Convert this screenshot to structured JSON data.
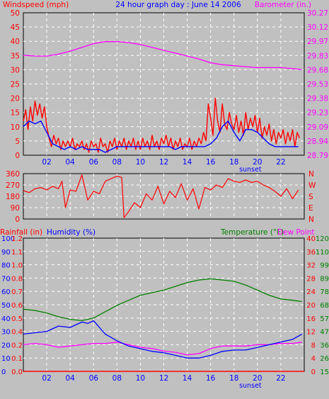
{
  "colors": {
    "background": "#c0c0c0",
    "plot_area": "#c0c0c0",
    "grid": "#ffffff",
    "wind": "#ff0000",
    "wind_avg": "#0000ff",
    "barometer": "#ff00ff",
    "direction": "#ff0000",
    "rain": "#ff0000",
    "humidity": "#0000ff",
    "temperature": "#008000",
    "dewpoint": "#ff00ff",
    "title": "#0000ff",
    "sunset": "#0000ff"
  },
  "header": {
    "left_label": "Windspeed (mph)",
    "title": "24 hour graph day : June 14 2006",
    "right_label": "Barometer (in.)"
  },
  "bottom_header": {
    "rain_label": "Rainfall (in)",
    "humidity_label": "Humidity (%)",
    "temp_label": "Temperature (°F)",
    "dew_label": "Dew Point"
  },
  "x_axis": {
    "ticks": [
      "02",
      "04",
      "06",
      "08",
      "10",
      "12",
      "14",
      "16",
      "18",
      "20",
      "22"
    ],
    "sunset_label": "sunset",
    "sunset_hour": 20
  },
  "chart_data": [
    {
      "type": "line",
      "name": "wind",
      "y_ticks_left": [
        "0",
        "5",
        "10",
        "15",
        "20",
        "25",
        "30",
        "35",
        "40",
        "45",
        "50"
      ],
      "y_ticks_right": [
        "28.79",
        "28.94",
        "29.09",
        "29.23",
        "29.38",
        "29.53",
        "29.68",
        "29.83",
        "29.97",
        "30.12",
        "30.27"
      ],
      "ylim_left": [
        0,
        50
      ],
      "ylim_right": [
        28.79,
        30.27
      ],
      "xlim_hours": [
        0,
        24
      ],
      "series": [
        {
          "name": "Windspeed (mph)",
          "x": [
            0,
            0.2,
            0.4,
            0.6,
            0.8,
            1.0,
            1.2,
            1.4,
            1.6,
            1.8,
            2.0,
            2.2,
            2.4,
            2.6,
            2.8,
            3.0,
            3.2,
            3.4,
            3.6,
            3.8,
            4.0,
            4.2,
            4.4,
            4.6,
            4.8,
            5.0,
            5.2,
            5.4,
            5.6,
            5.8,
            6.0,
            6.2,
            6.4,
            6.6,
            6.8,
            7.0,
            7.2,
            7.4,
            7.6,
            7.8,
            8.0,
            8.2,
            8.4,
            8.6,
            8.8,
            9.0,
            9.2,
            9.4,
            9.6,
            9.8,
            10.0,
            10.2,
            10.4,
            10.6,
            10.8,
            11.0,
            11.2,
            11.4,
            11.6,
            11.8,
            12.0,
            12.2,
            12.4,
            12.6,
            12.8,
            13.0,
            13.2,
            13.4,
            13.6,
            13.8,
            14.0,
            14.2,
            14.4,
            14.6,
            14.8,
            15.0,
            15.2,
            15.4,
            15.6,
            15.8,
            16.0,
            16.2,
            16.4,
            16.6,
            16.8,
            17.0,
            17.2,
            17.4,
            17.6,
            17.8,
            18.0,
            18.2,
            18.4,
            18.6,
            18.8,
            19.0,
            19.2,
            19.4,
            19.6,
            19.8,
            20.0,
            20.2,
            20.4,
            20.6,
            20.8,
            21.0,
            21.2,
            21.4,
            21.6,
            21.8,
            22.0,
            22.2,
            22.4,
            22.6,
            22.8,
            23.0,
            23.2,
            23.4,
            23.6
          ],
          "values": [
            12,
            16,
            9,
            17,
            12,
            19,
            14,
            18,
            13,
            17,
            10,
            6,
            3,
            7,
            4,
            6,
            2,
            5,
            3,
            5,
            3,
            6,
            2,
            4,
            3,
            5,
            2,
            4,
            1,
            5,
            3,
            4,
            1,
            6,
            3,
            4,
            1,
            5,
            3,
            6,
            2,
            5,
            3,
            6,
            2,
            5,
            3,
            6,
            2,
            5,
            2,
            6,
            3,
            5,
            2,
            7,
            3,
            5,
            2,
            6,
            4,
            7,
            3,
            6,
            2,
            5,
            3,
            6,
            2,
            4,
            3,
            6,
            2,
            5,
            3,
            6,
            4,
            8,
            5,
            18,
            13,
            7,
            20,
            12,
            8,
            18,
            11,
            9,
            15,
            11,
            9,
            14,
            8,
            12,
            7,
            15,
            9,
            13,
            10,
            14,
            8,
            13,
            6,
            10,
            7,
            11,
            5,
            9,
            4,
            8,
            6,
            9,
            4,
            8,
            5,
            9,
            3,
            8,
            6
          ]
        },
        {
          "name": "Wind average",
          "x": [
            0,
            0.5,
            1.0,
            1.5,
            2.0,
            2.5,
            3.0,
            3.5,
            4.0,
            4.5,
            5.0,
            5.5,
            6.0,
            6.5,
            7.0,
            7.5,
            8.0,
            8.5,
            9.0,
            9.5,
            10.0,
            10.5,
            11.0,
            11.5,
            12.0,
            12.5,
            13.0,
            13.5,
            14.0,
            14.5,
            15.0,
            15.5,
            16.0,
            16.5,
            17.0,
            17.5,
            18.0,
            18.5,
            19.0,
            19.5,
            20.0,
            20.5,
            21.0,
            21.5,
            22.0,
            22.5,
            23.0,
            23.5
          ],
          "values": [
            10,
            12,
            11,
            12,
            8,
            4,
            3,
            2,
            3,
            2,
            3,
            2,
            2,
            2,
            1,
            2,
            3,
            3,
            3,
            3,
            3,
            3,
            3,
            3,
            3,
            3,
            2,
            3,
            3,
            3,
            3,
            3,
            4,
            6,
            10,
            12,
            8,
            5,
            9,
            9,
            8,
            6,
            4,
            3,
            3,
            3,
            3,
            3
          ]
        },
        {
          "name": "Barometer (in.)",
          "axis": "right",
          "x": [
            0,
            1,
            2,
            3,
            4,
            5,
            6,
            7,
            8,
            9,
            10,
            11,
            12,
            13,
            14,
            15,
            16,
            17,
            18,
            19,
            20,
            21,
            22,
            23,
            23.8
          ],
          "values": [
            29.83,
            29.82,
            29.82,
            29.84,
            29.87,
            29.91,
            29.95,
            29.97,
            29.97,
            29.96,
            29.94,
            29.91,
            29.88,
            29.85,
            29.82,
            29.79,
            29.75,
            29.73,
            29.72,
            29.71,
            29.7,
            29.7,
            29.7,
            29.69,
            29.68
          ]
        }
      ]
    },
    {
      "type": "line",
      "name": "wind_direction",
      "y_ticks_left": [
        "0",
        "90",
        "180",
        "270",
        "360"
      ],
      "y_ticks_right": [
        "N",
        "E",
        "S",
        "W",
        "N"
      ],
      "ylim": [
        0,
        360
      ],
      "xlim_hours": [
        0,
        24
      ],
      "series": [
        {
          "name": "Wind direction",
          "x": [
            0,
            0.5,
            1.0,
            1.5,
            2.0,
            2.5,
            3.0,
            3.3,
            3.6,
            4.0,
            4.5,
            5.0,
            5.5,
            6.0,
            6.5,
            7.0,
            7.5,
            8.0,
            8.4,
            8.6,
            9.0,
            9.5,
            10.0,
            10.5,
            11.0,
            11.5,
            12.0,
            12.5,
            13.0,
            13.5,
            14.0,
            14.5,
            15.0,
            15.5,
            16.0,
            16.5,
            17.0,
            17.5,
            18.0,
            18.5,
            19.0,
            19.5,
            20.0,
            20.5,
            21.0,
            21.5,
            22.0,
            22.5,
            23.0,
            23.5
          ],
          "values": [
            225,
            210,
            240,
            250,
            230,
            260,
            240,
            300,
            90,
            230,
            220,
            350,
            150,
            220,
            200,
            300,
            320,
            340,
            330,
            10,
            60,
            130,
            90,
            200,
            150,
            260,
            120,
            220,
            170,
            280,
            150,
            240,
            80,
            250,
            230,
            270,
            250,
            320,
            300,
            290,
            310,
            290,
            300,
            270,
            250,
            220,
            180,
            240,
            160,
            230
          ]
        }
      ]
    },
    {
      "type": "line",
      "name": "humidity_temperature",
      "y_ticks_humidity": [
        "0",
        "10",
        "20",
        "30",
        "40",
        "50",
        "60",
        "70",
        "80",
        "90",
        "100"
      ],
      "y_ticks_rain": [
        "0.0",
        "0.1",
        "0.2",
        "0.4",
        "0.5",
        "0.6",
        "0.7",
        "0.8",
        "1.0",
        "1.1",
        "1.2"
      ],
      "y_ticks_temp_c": [
        "0",
        "4",
        "8",
        "12",
        "16",
        "20",
        "24",
        "28",
        "32",
        "36",
        "40"
      ],
      "y_ticks_temp_f": [
        "15",
        "26",
        "36",
        "47",
        "57",
        "68",
        "78",
        "89",
        "99",
        "110",
        "120"
      ],
      "ylim_humidity": [
        0,
        100
      ],
      "ylim_temp_f": [
        15,
        120
      ],
      "xlim_hours": [
        0,
        24
      ],
      "series": [
        {
          "name": "Humidity (%)",
          "axis": "humidity",
          "x": [
            0,
            1,
            2,
            3,
            4,
            5,
            5.5,
            6,
            6.5,
            7,
            8,
            9,
            10,
            11,
            12,
            13,
            14,
            15,
            16,
            17,
            18,
            19,
            20,
            21,
            22,
            23,
            23.8
          ],
          "values": [
            28,
            29,
            30,
            34,
            33,
            37,
            36,
            38,
            33,
            28,
            23,
            19,
            17,
            15,
            14,
            12,
            10,
            10,
            12,
            15,
            16,
            16,
            18,
            20,
            22,
            24,
            28
          ]
        },
        {
          "name": "Temperature (°F)",
          "axis": "temp_f",
          "x": [
            0,
            1,
            2,
            3,
            4,
            5,
            6,
            7,
            8,
            9,
            10,
            11,
            12,
            13,
            14,
            15,
            16,
            17,
            18,
            19,
            20,
            21,
            22,
            23,
            23.8
          ],
          "values": [
            64,
            63,
            61,
            58,
            56,
            55,
            57,
            62,
            67,
            71,
            75,
            77,
            79,
            82,
            85,
            87,
            88,
            87,
            86,
            83,
            79,
            75,
            72,
            71,
            70
          ]
        },
        {
          "name": "Dew Point",
          "axis": "temp_f",
          "x": [
            0,
            1,
            2,
            3,
            4,
            5,
            6,
            7,
            8,
            9,
            10,
            11,
            12,
            13,
            14,
            15,
            16,
            17,
            18,
            19,
            20,
            21,
            22,
            23,
            23.8
          ],
          "values": [
            36,
            37,
            36,
            34,
            35,
            36,
            37,
            37,
            38,
            36,
            34,
            33,
            31,
            30,
            28,
            29,
            33,
            35,
            35,
            35,
            36,
            36,
            37,
            37,
            38
          ]
        },
        {
          "name": "Rainfall (in)",
          "axis": "humidity",
          "x": [
            0,
            24
          ],
          "values": [
            0,
            0
          ]
        }
      ]
    }
  ]
}
